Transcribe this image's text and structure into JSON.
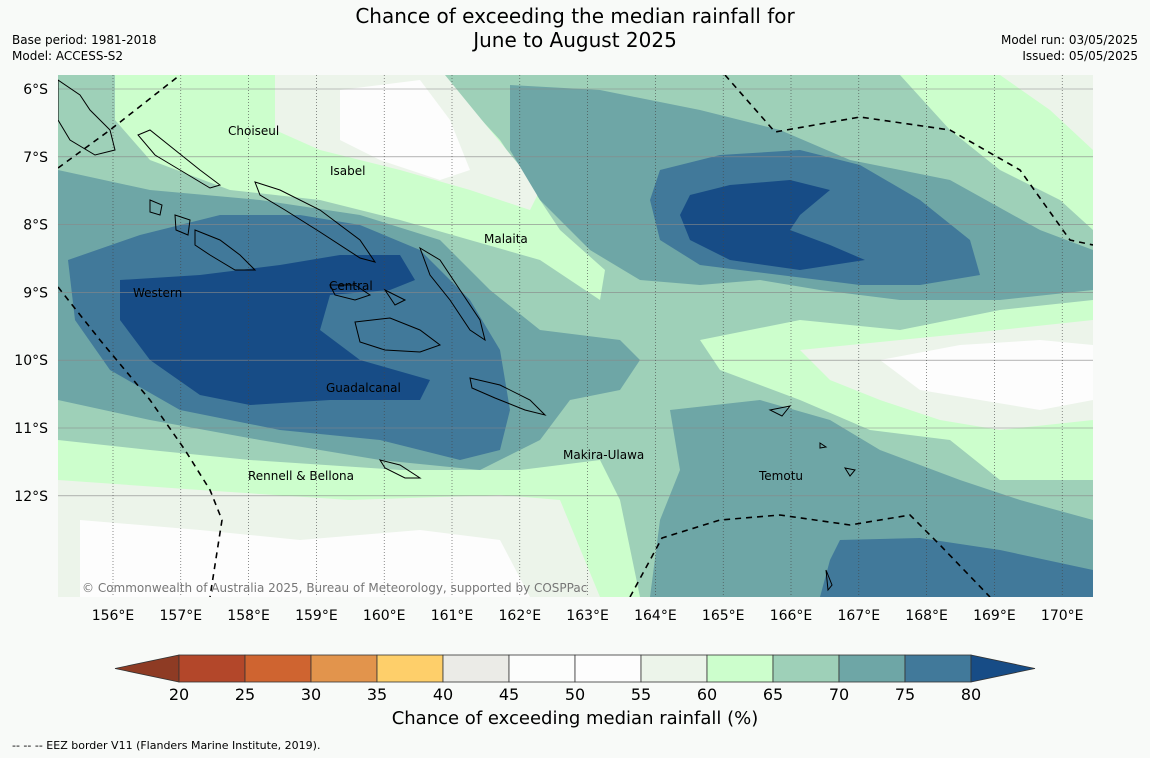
{
  "title_line1": "Chance of exceeding the median rainfall for",
  "title_line2": "June to August 2025",
  "base_period": "Base period: 1981-2018",
  "model": "Model: ACCESS-S2",
  "model_run": "Model run: 03/05/2025",
  "issued": "Issued: 05/05/2025",
  "copyright": "© Commonwealth of Australia 2025, Bureau of Meteorology, supported by COSPPac",
  "lat_labels": [
    "6°S",
    "7°S",
    "8°S",
    "9°S",
    "10°S",
    "11°S",
    "12°S"
  ],
  "lon_labels": [
    "156°E",
    "157°E",
    "158°E",
    "159°E",
    "160°E",
    "161°E",
    "162°E",
    "163°E",
    "164°E",
    "165°E",
    "166°E",
    "167°E",
    "168°E",
    "169°E",
    "170°E"
  ],
  "regions": [
    "Choiseul",
    "Isabel",
    "Malaita",
    "Western",
    "Central",
    "Guadalcanal",
    "Makira-Ulawa",
    "Rennell & Bellona",
    "Temotu"
  ],
  "colorbar": {
    "ticks": [
      "20",
      "25",
      "30",
      "35",
      "40",
      "45",
      "50",
      "55",
      "60",
      "65",
      "70",
      "75",
      "80"
    ],
    "colors": [
      "#b3472a",
      "#cf6430",
      "#e2944c",
      "#fecf6a",
      "#ebebe7",
      "#fcfdfc",
      "#fdfdfd",
      "#ecf4ea",
      "#ccfecc",
      "#9ed0b8",
      "#6ea6a6",
      "#41799a"
    ],
    "under_color": "#8e3b24",
    "over_color": "#174c86",
    "label": "Chance of exceeding median rainfall (%)"
  },
  "footnote": "--  --  -- EEZ border V11 (Flanders Marine Institute, 2019)."
}
